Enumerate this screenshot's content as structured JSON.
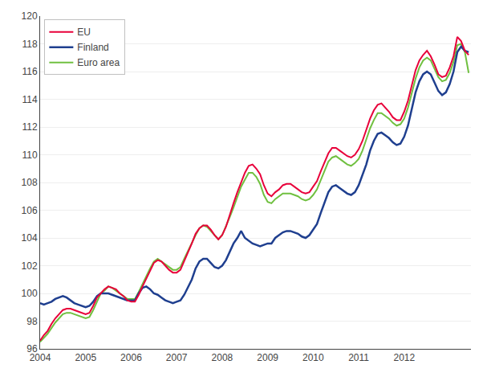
{
  "chart_data": {
    "type": "line",
    "x": [
      2004,
      2004.0833333333,
      2004.1666666667,
      2004.25,
      2004.3333333333,
      2004.4166666667,
      2004.5,
      2004.5833333333,
      2004.6666666667,
      2004.75,
      2004.8333333333,
      2004.9166666667,
      2005,
      2005.0833333333,
      2005.1666666667,
      2005.25,
      2005.3333333333,
      2005.4166666667,
      2005.5,
      2005.5833333333,
      2005.6666666667,
      2005.75,
      2005.8333333333,
      2005.9166666667,
      2006,
      2006.0833333333,
      2006.1666666667,
      2006.25,
      2006.3333333333,
      2006.4166666667,
      2006.5,
      2006.5833333333,
      2006.6666666667,
      2006.75,
      2006.8333333333,
      2006.9166666667,
      2007,
      2007.0833333333,
      2007.1666666667,
      2007.25,
      2007.3333333333,
      2007.4166666667,
      2007.5,
      2007.5833333333,
      2007.6666666667,
      2007.75,
      2007.8333333333,
      2007.9166666667,
      2008,
      2008.0833333333,
      2008.1666666667,
      2008.25,
      2008.3333333333,
      2008.4166666667,
      2008.5,
      2008.5833333333,
      2008.6666666667,
      2008.75,
      2008.8333333333,
      2008.9166666667,
      2009,
      2009.0833333333,
      2009.1666666667,
      2009.25,
      2009.3333333333,
      2009.4166666667,
      2009.5,
      2009.5833333333,
      2009.6666666667,
      2009.75,
      2009.8333333333,
      2009.9166666667,
      2010,
      2010.0833333333,
      2010.1666666667,
      2010.25,
      2010.3333333333,
      2010.4166666667,
      2010.5,
      2010.5833333333,
      2010.6666666667,
      2010.75,
      2010.8333333333,
      2010.9166666667,
      2011,
      2011.0833333333,
      2011.1666666667,
      2011.25,
      2011.3333333333,
      2011.4166666667,
      2011.5,
      2011.5833333333,
      2011.6666666667,
      2011.75,
      2011.8333333333,
      2011.9166666667,
      2012,
      2012.0833333333,
      2012.1666666667,
      2012.25,
      2012.3333333333,
      2012.4166666667,
      2012.5,
      2012.5833333333,
      2012.6666666667,
      2012.75,
      2012.8333333333,
      2012.9166666667,
      2013,
      2013.0833333333,
      2013.1666666667,
      2013.25,
      2013.3333333333,
      2013.4166666667
    ],
    "series": [
      {
        "name": "EU",
        "color": "#e8003a",
        "values": [
          96.6,
          97.0,
          97.3,
          97.8,
          98.2,
          98.5,
          98.8,
          98.9,
          98.9,
          98.8,
          98.7,
          98.6,
          98.5,
          98.6,
          99.1,
          99.7,
          100.0,
          100.3,
          100.5,
          100.4,
          100.3,
          100.0,
          99.8,
          99.5,
          99.4,
          99.4,
          99.9,
          100.5,
          101.1,
          101.7,
          102.2,
          102.4,
          102.3,
          102.0,
          101.7,
          101.5,
          101.5,
          101.7,
          102.3,
          103.0,
          103.6,
          104.3,
          104.7,
          104.9,
          104.9,
          104.6,
          104.2,
          103.9,
          104.2,
          104.8,
          105.7,
          106.5,
          107.3,
          108.0,
          108.7,
          109.2,
          109.3,
          109.0,
          108.6,
          107.8,
          107.2,
          107.0,
          107.3,
          107.5,
          107.8,
          107.9,
          107.9,
          107.7,
          107.5,
          107.3,
          107.2,
          107.3,
          107.7,
          108.1,
          108.8,
          109.5,
          110.1,
          110.5,
          110.5,
          110.3,
          110.1,
          109.9,
          109.8,
          110.0,
          110.4,
          111.0,
          111.8,
          112.6,
          113.2,
          113.6,
          113.7,
          113.4,
          113.1,
          112.7,
          112.5,
          112.5,
          113.1,
          113.9,
          115.0,
          116.1,
          116.8,
          117.2,
          117.5,
          117.1,
          116.5,
          115.8,
          115.6,
          115.7,
          116.3,
          117.1,
          118.5,
          118.2,
          117.5,
          117.2
        ]
      },
      {
        "name": "Finland",
        "color": "#1f3f8f",
        "values": [
          99.3,
          99.2,
          99.3,
          99.4,
          99.6,
          99.7,
          99.8,
          99.7,
          99.5,
          99.3,
          99.2,
          99.1,
          99.0,
          99.1,
          99.4,
          99.8,
          100.0,
          100.0,
          100.0,
          99.9,
          99.8,
          99.7,
          99.6,
          99.5,
          99.5,
          99.5,
          100.0,
          100.4,
          100.5,
          100.3,
          100.0,
          99.9,
          99.7,
          99.5,
          99.4,
          99.3,
          99.4,
          99.5,
          99.9,
          100.5,
          101.0,
          101.8,
          102.3,
          102.5,
          102.5,
          102.2,
          101.9,
          101.8,
          102.0,
          102.4,
          103.0,
          103.6,
          104.0,
          104.5,
          104.0,
          103.8,
          103.6,
          103.5,
          103.4,
          103.5,
          103.6,
          103.6,
          104.0,
          104.2,
          104.4,
          104.5,
          104.5,
          104.4,
          104.3,
          104.1,
          104.0,
          104.2,
          104.6,
          105.0,
          105.8,
          106.6,
          107.3,
          107.7,
          107.8,
          107.6,
          107.4,
          107.2,
          107.1,
          107.3,
          107.8,
          108.5,
          109.3,
          110.3,
          111.0,
          111.5,
          111.6,
          111.4,
          111.2,
          110.9,
          110.7,
          110.8,
          111.3,
          112.1,
          113.4,
          114.5,
          115.3,
          115.8,
          116.0,
          115.8,
          115.2,
          114.6,
          114.3,
          114.5,
          115.1,
          116.0,
          117.4,
          117.8,
          117.5,
          117.4
        ]
      },
      {
        "name": "Euro area",
        "color": "#70c040",
        "values": [
          96.5,
          96.8,
          97.1,
          97.5,
          97.9,
          98.2,
          98.5,
          98.6,
          98.6,
          98.5,
          98.4,
          98.3,
          98.2,
          98.3,
          98.8,
          99.4,
          100.0,
          100.2,
          100.5,
          100.4,
          100.2,
          100.0,
          99.8,
          99.6,
          99.6,
          99.6,
          100.1,
          100.7,
          101.3,
          101.8,
          102.3,
          102.5,
          102.3,
          102.1,
          101.9,
          101.7,
          101.7,
          101.9,
          102.5,
          103.1,
          103.7,
          104.2,
          104.7,
          104.9,
          104.8,
          104.5,
          104.2,
          103.9,
          104.2,
          104.8,
          105.5,
          106.2,
          107.0,
          107.7,
          108.2,
          108.7,
          108.7,
          108.4,
          107.9,
          107.1,
          106.6,
          106.5,
          106.8,
          107.0,
          107.2,
          107.2,
          107.2,
          107.1,
          107.0,
          106.8,
          106.7,
          106.8,
          107.1,
          107.5,
          108.2,
          108.9,
          109.5,
          109.8,
          109.9,
          109.7,
          109.5,
          109.3,
          109.2,
          109.4,
          109.7,
          110.3,
          111.1,
          111.9,
          112.5,
          113.0,
          113.0,
          112.8,
          112.6,
          112.3,
          112.1,
          112.2,
          112.6,
          113.4,
          114.5,
          115.5,
          116.3,
          116.8,
          117.0,
          116.8,
          116.2,
          115.6,
          115.3,
          115.4,
          115.9,
          116.7,
          117.9,
          118.0,
          117.4,
          115.9
        ]
      }
    ],
    "xlim": [
      2004,
      2013.4666666667
    ],
    "xticks": [
      2004,
      2005,
      2006,
      2007,
      2008,
      2009,
      2010,
      2011,
      2012
    ],
    "ylim": [
      96,
      120
    ],
    "yticks": [
      96,
      98,
      100,
      102,
      104,
      106,
      108,
      110,
      112,
      114,
      116,
      118,
      120
    ],
    "grid": "y",
    "legend": "upper left"
  }
}
